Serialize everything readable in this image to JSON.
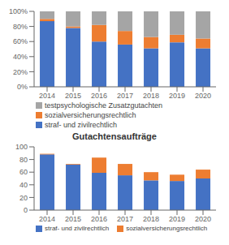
{
  "chart_data": [
    {
      "type": "bar",
      "stacked": true,
      "grid": false,
      "legend": "bottom",
      "categories": [
        "2014",
        "2015",
        "2016",
        "2017",
        "2018",
        "2019",
        "2020"
      ],
      "series": [
        {
          "name": "straf- und zivilrechtlich",
          "color": "#4472C4",
          "values": [
            87,
            78,
            60,
            56,
            51,
            59,
            51
          ]
        },
        {
          "name": "sozialversicherungsrechtlich",
          "color": "#ED7D31",
          "values": [
            3,
            2,
            22,
            18,
            15,
            10,
            13
          ]
        },
        {
          "name": "testpsychologische Zusatzgutachten",
          "color": "#A5A5A5",
          "values": [
            10,
            20,
            18,
            26,
            34,
            31,
            36
          ]
        }
      ],
      "ylim": [
        0,
        100
      ],
      "yticks": [
        {
          "value": 0,
          "label": "0%"
        },
        {
          "value": 20,
          "label": "20%"
        },
        {
          "value": 40,
          "label": "40%"
        },
        {
          "value": 60,
          "label": "60%"
        },
        {
          "value": 80,
          "label": "80%"
        },
        {
          "value": 100,
          "label": "100%"
        }
      ]
    },
    {
      "type": "bar",
      "stacked": true,
      "grid": false,
      "legend": "bottom",
      "title": "Gutachtensaufträge",
      "categories": [
        "2014",
        "2015",
        "2016",
        "2017",
        "2018",
        "2019",
        "2020"
      ],
      "series": [
        {
          "name": "straf- und zivilrechtlich",
          "color": "#4472C4",
          "values": [
            88,
            72,
            59,
            55,
            47,
            46,
            50
          ]
        },
        {
          "name": "sozialversicherungsrechtlich",
          "color": "#ED7D31",
          "values": [
            1,
            1,
            24,
            18,
            13,
            10,
            14
          ]
        }
      ],
      "ylim": [
        0,
        100
      ],
      "yticks": [
        0,
        20,
        40,
        60,
        80,
        100
      ]
    }
  ]
}
